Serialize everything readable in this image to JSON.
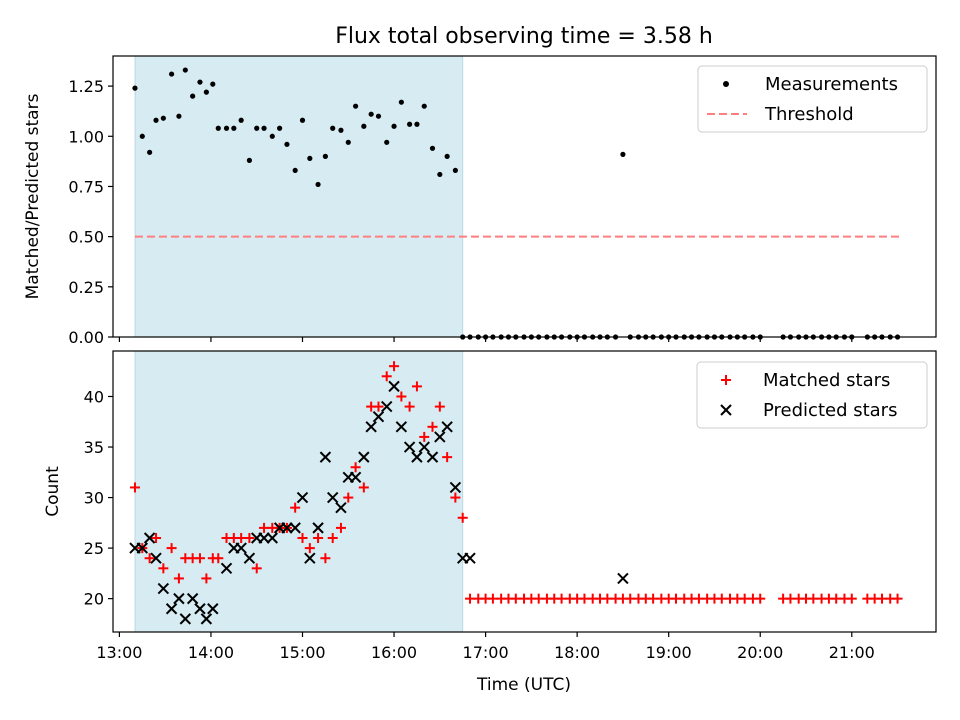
{
  "chart_data": [
    {
      "type": "scatter",
      "title": "Flux total observing time = 3.58 h",
      "xlabel": "",
      "ylabel": "Matched/Predicted stars",
      "xlim": [
        12.93,
        21.92
      ],
      "ylim": [
        0.0,
        1.4
      ],
      "yticks": [
        0.0,
        0.25,
        0.5,
        0.75,
        1.0,
        1.25
      ],
      "ytick_labels": [
        "0.00",
        "0.25",
        "0.50",
        "0.75",
        "1.00",
        "1.25"
      ],
      "shaded_span": [
        13.17,
        16.75
      ],
      "legend": [
        "Measurements",
        "Threshold"
      ],
      "legend_position": "upper right",
      "threshold": {
        "name": "Threshold",
        "y": 0.5,
        "x": [
          13.17,
          21.53
        ],
        "color": "#ff7f7f"
      },
      "series": [
        {
          "name": "Measurements",
          "marker": "dot",
          "color": "#000000",
          "x": [
            13.17,
            13.25,
            13.33,
            13.4,
            13.48,
            13.57,
            13.65,
            13.72,
            13.8,
            13.88,
            13.95,
            14.02,
            14.08,
            14.17,
            14.25,
            14.33,
            14.42,
            14.5,
            14.58,
            14.67,
            14.75,
            14.83,
            14.92,
            15.0,
            15.08,
            15.17,
            15.25,
            15.33,
            15.42,
            15.5,
            15.58,
            15.67,
            15.75,
            15.83,
            15.92,
            16.0,
            16.08,
            16.17,
            16.25,
            16.33,
            16.42,
            16.5,
            16.58,
            16.67,
            16.75,
            16.83,
            16.92,
            17.0,
            17.08,
            17.17,
            17.25,
            17.33,
            17.42,
            17.5,
            17.58,
            17.67,
            17.75,
            17.83,
            17.92,
            18.0,
            18.08,
            18.17,
            18.25,
            18.33,
            18.42,
            18.5,
            18.58,
            18.67,
            18.75,
            18.83,
            18.92,
            19.0,
            19.08,
            19.17,
            19.25,
            19.33,
            19.42,
            19.5,
            19.58,
            19.67,
            19.75,
            19.83,
            19.92,
            20.0,
            20.25,
            20.33,
            20.42,
            20.5,
            20.58,
            20.67,
            20.75,
            20.83,
            20.92,
            21.0,
            21.17,
            21.25,
            21.33,
            21.42,
            21.5
          ],
          "y": [
            1.24,
            1.0,
            0.92,
            1.08,
            1.09,
            1.31,
            1.1,
            1.33,
            1.2,
            1.27,
            1.22,
            1.26,
            1.04,
            1.04,
            1.04,
            1.08,
            0.88,
            1.04,
            1.04,
            1.0,
            1.04,
            0.96,
            0.83,
            1.08,
            0.89,
            0.76,
            0.9,
            1.04,
            1.03,
            0.97,
            1.15,
            1.05,
            1.11,
            1.1,
            0.97,
            1.05,
            1.17,
            1.06,
            1.06,
            1.15,
            0.94,
            0.81,
            0.9,
            0.83,
            0,
            0,
            0,
            0,
            0,
            0,
            0,
            0,
            0,
            0,
            0,
            0,
            0,
            0,
            0,
            0,
            0,
            0,
            0,
            0,
            0,
            0.91,
            0,
            0,
            0,
            0,
            0,
            0,
            0,
            0,
            0,
            0,
            0,
            0,
            0,
            0,
            0,
            0,
            0,
            0,
            0,
            0,
            0,
            0,
            0,
            0,
            0,
            0,
            0,
            0,
            0,
            0,
            0,
            0,
            0
          ]
        }
      ]
    },
    {
      "type": "scatter",
      "title": "",
      "xlabel": "Time (UTC)",
      "ylabel": "Count",
      "xlim": [
        12.93,
        21.92
      ],
      "ylim": [
        16.7,
        44.5
      ],
      "yticks": [
        20,
        25,
        30,
        35,
        40
      ],
      "ytick_labels": [
        "20",
        "25",
        "30",
        "35",
        "40"
      ],
      "xticks": [
        13,
        14,
        15,
        16,
        17,
        18,
        19,
        20,
        21
      ],
      "xtick_labels": [
        "13:00",
        "14:00",
        "15:00",
        "16:00",
        "17:00",
        "18:00",
        "19:00",
        "20:00",
        "21:00"
      ],
      "shaded_span": [
        13.17,
        16.75
      ],
      "legend": [
        "Matched stars",
        "Predicted stars"
      ],
      "legend_position": "upper right",
      "series": [
        {
          "name": "Matched stars",
          "marker": "plus",
          "color": "#ff0000",
          "x": [
            13.17,
            13.25,
            13.33,
            13.4,
            13.48,
            13.57,
            13.65,
            13.72,
            13.8,
            13.88,
            13.95,
            14.02,
            14.08,
            14.17,
            14.25,
            14.33,
            14.42,
            14.5,
            14.58,
            14.67,
            14.75,
            14.83,
            14.92,
            15.0,
            15.08,
            15.17,
            15.25,
            15.33,
            15.42,
            15.5,
            15.58,
            15.67,
            15.75,
            15.83,
            15.92,
            16.0,
            16.08,
            16.17,
            16.25,
            16.33,
            16.42,
            16.5,
            16.58,
            16.67,
            16.75,
            16.83,
            16.92,
            17.0,
            17.08,
            17.17,
            17.25,
            17.33,
            17.42,
            17.5,
            17.58,
            17.67,
            17.75,
            17.83,
            17.92,
            18.0,
            18.08,
            18.17,
            18.25,
            18.33,
            18.42,
            18.5,
            18.58,
            18.67,
            18.75,
            18.83,
            18.92,
            19.0,
            19.08,
            19.17,
            19.25,
            19.33,
            19.42,
            19.5,
            19.58,
            19.67,
            19.75,
            19.83,
            19.92,
            20.0,
            20.25,
            20.33,
            20.42,
            20.5,
            20.58,
            20.67,
            20.75,
            20.83,
            20.92,
            21.0,
            21.17,
            21.25,
            21.33,
            21.42,
            21.5
          ],
          "y": [
            31,
            25,
            24,
            26,
            23,
            25,
            22,
            24,
            24,
            24,
            22,
            24,
            24,
            26,
            26,
            26,
            26,
            23,
            27,
            27,
            27,
            27,
            29,
            26,
            25,
            26,
            24,
            26,
            27,
            30,
            33,
            31,
            39,
            39,
            42,
            43,
            40,
            39,
            41,
            36,
            37,
            39,
            34,
            30,
            28,
            20,
            20,
            20,
            20,
            20,
            20,
            20,
            20,
            20,
            20,
            20,
            20,
            20,
            20,
            20,
            20,
            20,
            20,
            20,
            20,
            20,
            20,
            20,
            20,
            20,
            20,
            20,
            20,
            20,
            20,
            20,
            20,
            20,
            20,
            20,
            20,
            20,
            20,
            20,
            20,
            20,
            20,
            20,
            20,
            20,
            20,
            20,
            20,
            20,
            20,
            20,
            20,
            20,
            20
          ]
        },
        {
          "name": "Predicted stars",
          "marker": "x",
          "color": "#000000",
          "x": [
            13.17,
            13.25,
            13.33,
            13.4,
            13.48,
            13.57,
            13.65,
            13.72,
            13.8,
            13.88,
            13.95,
            14.02,
            14.17,
            14.25,
            14.33,
            14.42,
            14.5,
            14.58,
            14.67,
            14.75,
            14.83,
            14.92,
            15.0,
            15.08,
            15.17,
            15.25,
            15.33,
            15.42,
            15.5,
            15.58,
            15.67,
            15.75,
            15.83,
            15.92,
            16.0,
            16.08,
            16.17,
            16.25,
            16.33,
            16.42,
            16.5,
            16.58,
            16.67,
            16.75,
            16.83,
            18.5
          ],
          "y": [
            25,
            25,
            26,
            24,
            21,
            19,
            20,
            18,
            20,
            19,
            18,
            19,
            23,
            25,
            25,
            24,
            26,
            26,
            26,
            27,
            27,
            27,
            30,
            24,
            27,
            34,
            30,
            29,
            32,
            32,
            34,
            37,
            38,
            39,
            41,
            37,
            35,
            34,
            35,
            34,
            36,
            37,
            31,
            24,
            24,
            22
          ]
        }
      ]
    }
  ]
}
